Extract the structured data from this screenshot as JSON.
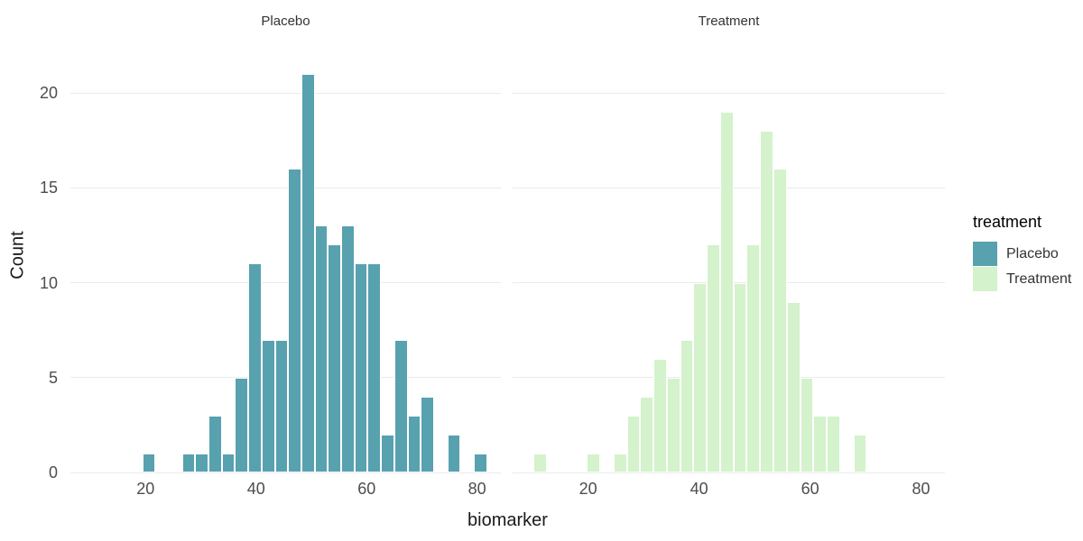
{
  "figure": {
    "background": "#ffffff",
    "legend": {
      "title": "treatment",
      "items": [
        {
          "label": "Placebo",
          "color": "#58a1af"
        },
        {
          "label": "Treatment",
          "color": "#d4f2cb"
        }
      ]
    }
  },
  "chart_data": {
    "type": "bar",
    "subtype": "faceted-histogram",
    "x": {
      "label": "biomarker",
      "domain": [
        6.4,
        84.3
      ],
      "ticks": [
        20,
        40,
        60,
        80
      ]
    },
    "y": {
      "label": "Count",
      "domain": [
        0,
        22.9
      ],
      "ticks": [
        0,
        5,
        10,
        15,
        20
      ]
    },
    "grid": "horizontal-only",
    "grid_color": "#ebebeb",
    "bar_border_color": "#ffffff",
    "facets": [
      {
        "title": "Placebo",
        "fill": "#58a1af",
        "bin_start": 19.4,
        "bin_width": 2.4,
        "counts": [
          1,
          0,
          0,
          1,
          1,
          3,
          1,
          5,
          11,
          7,
          7,
          16,
          21,
          13,
          12,
          13,
          11,
          11,
          2,
          7,
          3,
          4,
          0,
          2,
          0,
          1
        ]
      },
      {
        "title": "Treatment",
        "fill": "#d4f2cb",
        "bin_start": 10.2,
        "bin_width": 2.4,
        "counts": [
          1,
          0,
          0,
          0,
          1,
          0,
          1,
          3,
          4,
          6,
          5,
          7,
          10,
          12,
          19,
          10,
          12,
          18,
          16,
          9,
          5,
          3,
          3,
          0,
          2
        ]
      }
    ]
  }
}
